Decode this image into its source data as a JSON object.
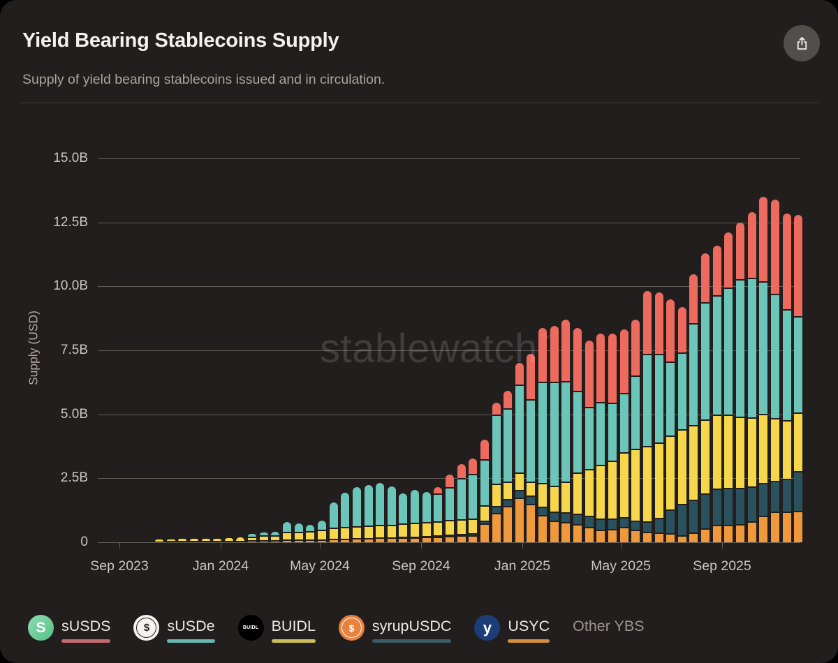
{
  "header": {
    "title": "Yield Bearing Stablecoins Supply",
    "subtitle": "Supply of yield bearing stablecoins issued and in circulation."
  },
  "watermark": {
    "text": "stablewatch",
    "tm": "™"
  },
  "colors": {
    "card_bg": "#211e1d",
    "gridline": "#615d59",
    "susds_bar": "#ec6a5e",
    "susde_bar": "#6cc5b9",
    "buidl_bar": "#f6d64b",
    "syrupusdc_bar": "#2a525e",
    "usyc_bar": "#f0993c"
  },
  "chart_data": {
    "type": "bar",
    "stacked": true,
    "title": "Yield Bearing Stablecoins Supply",
    "xlabel": "",
    "ylabel": "Supply (USD)",
    "unit": "billions USD",
    "ylim": [
      0,
      15
    ],
    "grid": "horizontal",
    "legend_position": "bottom",
    "y_ticks": [
      {
        "label": "15.0B",
        "value": 15.0
      },
      {
        "label": "12.5B",
        "value": 12.5
      },
      {
        "label": "10.0B",
        "value": 10.0
      },
      {
        "label": "7.5B",
        "value": 7.5
      },
      {
        "label": "5.0B",
        "value": 5.0
      },
      {
        "label": "2.5B",
        "value": 2.5
      },
      {
        "label": "0",
        "value": 0
      }
    ],
    "x_ticks": [
      "Sep 2023",
      "Jan 2024",
      "May 2024",
      "Sep 2024",
      "Jan 2025",
      "May 2025",
      "Sep 2025"
    ],
    "dates": [
      "2023-10-19",
      "2023-11-02",
      "2023-11-16",
      "2023-11-30",
      "2023-12-14",
      "2023-12-28",
      "2024-01-11",
      "2024-01-25",
      "2024-02-08",
      "2024-02-22",
      "2024-03-07",
      "2024-03-21",
      "2024-04-04",
      "2024-04-18",
      "2024-05-02",
      "2024-05-16",
      "2024-05-30",
      "2024-06-13",
      "2024-06-27",
      "2024-07-11",
      "2024-07-25",
      "2024-08-08",
      "2024-08-22",
      "2024-09-05",
      "2024-09-19",
      "2024-10-03",
      "2024-10-17",
      "2024-10-31",
      "2024-11-14",
      "2024-11-28",
      "2024-12-12",
      "2024-12-26",
      "2025-01-09",
      "2025-01-23",
      "2025-02-06",
      "2025-02-20",
      "2025-03-06",
      "2025-03-20",
      "2025-04-03",
      "2025-04-17",
      "2025-05-01",
      "2025-05-15",
      "2025-05-29",
      "2025-06-12",
      "2025-06-26",
      "2025-07-10",
      "2025-07-24",
      "2025-08-07",
      "2025-08-21",
      "2025-09-04",
      "2025-09-18",
      "2025-10-02",
      "2025-10-16",
      "2025-10-30",
      "2025-11-13",
      "2025-11-27"
    ],
    "series_bottom_to_top": [
      {
        "name": "USYC",
        "color": "#f0993c",
        "values": [
          0.04,
          0.05,
          0.05,
          0.05,
          0.05,
          0.05,
          0.06,
          0.06,
          0.07,
          0.08,
          0.08,
          0.1,
          0.1,
          0.1,
          0.12,
          0.14,
          0.15,
          0.16,
          0.17,
          0.18,
          0.18,
          0.19,
          0.2,
          0.21,
          0.22,
          0.24,
          0.26,
          0.28,
          0.74,
          1.15,
          1.42,
          1.75,
          1.5,
          1.06,
          0.85,
          0.8,
          0.7,
          0.6,
          0.5,
          0.52,
          0.6,
          0.5,
          0.42,
          0.39,
          0.35,
          0.26,
          0.37,
          0.55,
          0.69,
          0.69,
          0.72,
          0.83,
          1.03,
          1.21,
          1.21,
          1.24
        ]
      },
      {
        "name": "syrupUSDC",
        "color": "#2a525e",
        "values": [
          0,
          0,
          0,
          0,
          0,
          0,
          0,
          0,
          0,
          0,
          0,
          0,
          0,
          0,
          0,
          0,
          0,
          0,
          0,
          0,
          0,
          0.02,
          0.03,
          0.04,
          0.05,
          0.06,
          0.07,
          0.08,
          0.1,
          0.27,
          0.28,
          0.3,
          0.32,
          0.33,
          0.35,
          0.38,
          0.42,
          0.45,
          0.42,
          0.4,
          0.38,
          0.35,
          0.4,
          0.57,
          0.93,
          1.25,
          1.3,
          1.35,
          1.4,
          1.45,
          1.4,
          1.35,
          1.3,
          1.2,
          1.26,
          1.53
        ]
      },
      {
        "name": "BUIDL",
        "color": "#f6d64b",
        "values": [
          0.06,
          0.07,
          0.08,
          0.08,
          0.09,
          0.1,
          0.1,
          0.12,
          0.16,
          0.18,
          0.2,
          0.3,
          0.32,
          0.33,
          0.38,
          0.42,
          0.45,
          0.47,
          0.48,
          0.5,
          0.51,
          0.52,
          0.53,
          0.54,
          0.55,
          0.56,
          0.57,
          0.58,
          0.6,
          0.87,
          0.68,
          0.68,
          0.55,
          0.93,
          1.0,
          1.2,
          1.6,
          1.8,
          2.1,
          2.26,
          2.54,
          2.81,
          2.94,
          2.95,
          2.9,
          2.9,
          2.9,
          2.9,
          2.9,
          2.85,
          2.8,
          2.7,
          2.7,
          2.45,
          2.29,
          2.29
        ]
      },
      {
        "name": "sUSDe",
        "color": "#6cc5b9",
        "values": [
          0,
          0,
          0,
          0,
          0,
          0,
          0,
          0,
          0.1,
          0.12,
          0.13,
          0.39,
          0.32,
          0.25,
          0.35,
          0.99,
          1.34,
          1.52,
          1.59,
          1.64,
          1.49,
          1.18,
          1.29,
          1.17,
          1.08,
          1.29,
          1.6,
          1.73,
          1.81,
          2.71,
          2.86,
          3.42,
          3.22,
          3.95,
          4.07,
          3.92,
          3.2,
          2.43,
          2.45,
          2.28,
          2.32,
          2.86,
          3.6,
          3.45,
          2.88,
          3.02,
          3.99,
          4.58,
          4.66,
          4.96,
          5.36,
          5.45,
          5.17,
          4.84,
          4.35,
          3.78
        ]
      },
      {
        "name": "sUSDS",
        "color": "#ec6a5e",
        "values": [
          0,
          0,
          0,
          0,
          0,
          0,
          0,
          0,
          0,
          0,
          0,
          0,
          0,
          0,
          0,
          0,
          0,
          0,
          0,
          0,
          0,
          0,
          0,
          0,
          0.25,
          0.5,
          0.55,
          0.6,
          0.75,
          0.46,
          0.68,
          0.85,
          1.77,
          2.1,
          2.18,
          2.4,
          2.45,
          2.6,
          2.68,
          2.69,
          2.48,
          2.18,
          2.46,
          2.4,
          2.43,
          1.77,
          1.91,
          1.92,
          1.95,
          2.15,
          2.22,
          2.57,
          3.3,
          3.7,
          3.74,
          3.96
        ]
      }
    ]
  },
  "legend": {
    "items": [
      {
        "label": "sUSDS",
        "underline": "#c26b6e",
        "icon": {
          "name": "susds-icon",
          "bg": "linear-gradient(135deg,#8fdbb0,#54c187)",
          "fg": "#ffffff",
          "text": "S",
          "text_size": 21,
          "ring": null
        }
      },
      {
        "label": "sUSDe",
        "underline": "#68b7ac",
        "icon": {
          "name": "susde-icon",
          "bg": "#f5f2ef",
          "fg": "#242220",
          "text": "$",
          "text_size": 15,
          "ring": "#242220"
        }
      },
      {
        "label": "BUIDL",
        "underline": "#cdbd58",
        "icon": {
          "name": "buidl-icon",
          "bg": "#000000",
          "fg": "#ffffff",
          "text": "BUIDL",
          "text_size": 7,
          "ring": null
        }
      },
      {
        "label": "syrupUSDC",
        "underline": "#3c5d64",
        "icon": {
          "name": "syrupusdc-icon",
          "bg": "#e9813e",
          "fg": "#ffffff",
          "text": "$",
          "text_size": 14,
          "ring": "#ffffff"
        }
      },
      {
        "label": "USYC",
        "underline": "#d38f3e",
        "icon": {
          "name": "usyc-icon",
          "bg": "#1c3d77",
          "fg": "#ffffff",
          "text": "y",
          "text_size": 22,
          "ring": null
        }
      },
      {
        "label": "Other YBS",
        "underline": null,
        "icon": null
      }
    ]
  }
}
